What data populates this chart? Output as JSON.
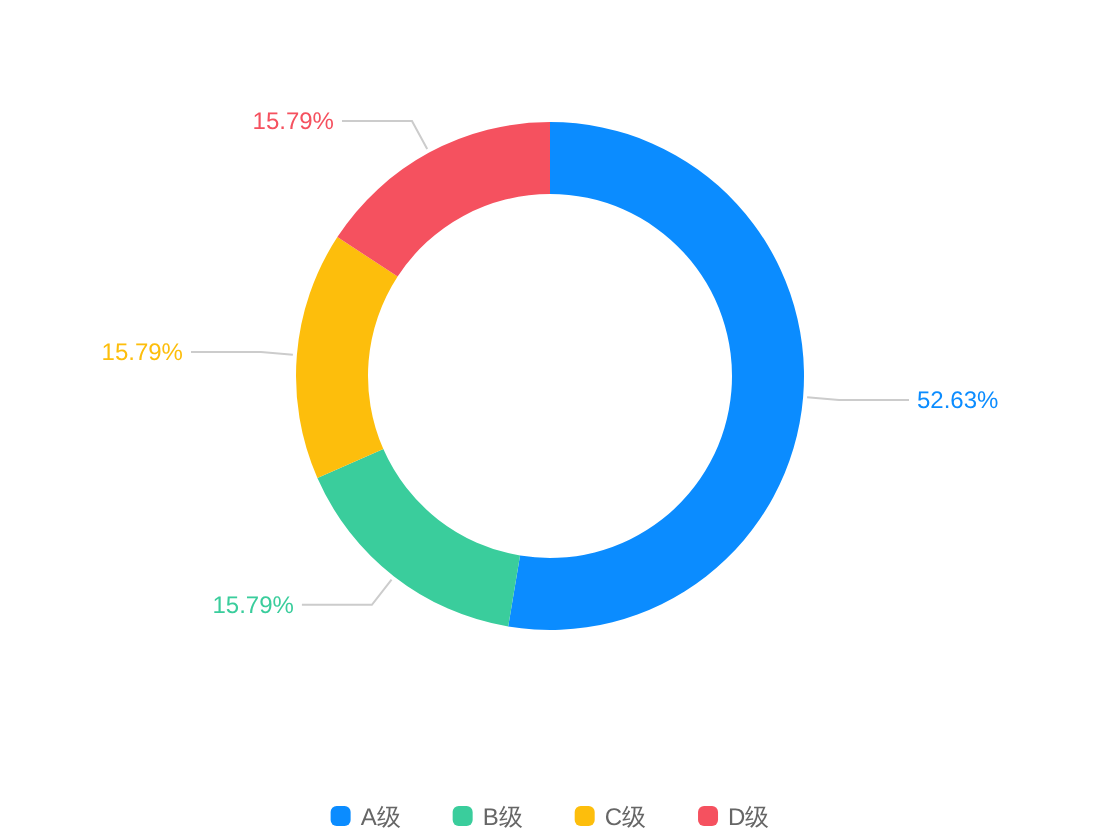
{
  "chart_data": {
    "type": "donut",
    "categories": [
      "A级",
      "B级",
      "C级",
      "D级"
    ],
    "values": [
      52.63,
      15.79,
      15.79,
      15.79
    ],
    "colors": [
      "#0b8cff",
      "#3acd9c",
      "#fdbe0c",
      "#f5515f"
    ],
    "value_labels": [
      "52.63%",
      "15.79%",
      "15.79%",
      "15.79%"
    ],
    "legend": "bottom"
  }
}
